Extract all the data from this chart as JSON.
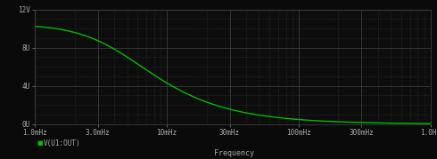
{
  "background_color": "#0a0a0a",
  "plot_bg_color": "#0d0d0d",
  "grid_major_color": "#444444",
  "grid_minor_color": "#333333",
  "line_color": "#00bb00",
  "tick_label_color": "#aaaaaa",
  "xlabel": "Frequency",
  "legend_label": "V(U1:OUT)",
  "legend_dot_color": "#00bb00",
  "cutoff_freq": 0.0045,
  "v_max": 10.5,
  "ylim": [
    0,
    12
  ],
  "xlim": [
    0.001,
    1.0
  ],
  "ytick_vals": [
    0,
    4,
    8,
    12
  ],
  "ytick_labels": [
    "0U",
    "4U",
    "8U",
    "12V"
  ],
  "xtick_positions": [
    0.001,
    0.003,
    0.01,
    0.03,
    0.1,
    0.3,
    1.0
  ],
  "xtick_labels": [
    "1.0mHz",
    "3.0mHz",
    "10mHz",
    "30mHz",
    "100mHz",
    "300mHz",
    "1.0Hz"
  ],
  "line_width": 1.0,
  "figsize": [
    4.9,
    1.79
  ],
  "dpi": 100
}
